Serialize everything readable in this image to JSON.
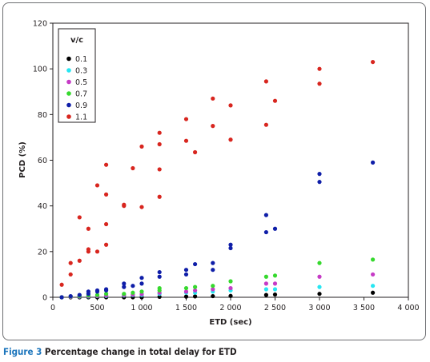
{
  "chart_data": {
    "type": "scatter",
    "title": "",
    "xlabel": "ETD (sec)",
    "ylabel": "PCD (%)",
    "xlim": [
      0,
      4000
    ],
    "ylim": [
      0,
      120
    ],
    "x_ticks": [
      0,
      500,
      1000,
      1500,
      2000,
      2500,
      3000,
      3500,
      4000
    ],
    "x_tick_labels": [
      "0",
      "500",
      "1 000",
      "1 500",
      "2 000",
      "2 500",
      "3 000",
      "3 500",
      "4 000"
    ],
    "y_ticks": [
      0,
      20,
      40,
      60,
      80,
      100,
      120
    ],
    "y_tick_labels": [
      "0",
      "20",
      "40",
      "60",
      "80",
      "100",
      "120"
    ],
    "grid": false,
    "legend": {
      "title": "v/c",
      "position": "top-left"
    },
    "series": [
      {
        "name": "0.1",
        "color": "#000000",
        "points": [
          [
            100,
            0
          ],
          [
            200,
            0
          ],
          [
            300,
            0
          ],
          [
            400,
            0
          ],
          [
            500,
            0
          ],
          [
            600,
            0
          ],
          [
            800,
            0
          ],
          [
            900,
            0
          ],
          [
            1000,
            0
          ],
          [
            1200,
            0.2
          ],
          [
            1500,
            0.3
          ],
          [
            1600,
            0.4
          ],
          [
            1800,
            0.5
          ],
          [
            2000,
            0.6
          ],
          [
            2400,
            1
          ],
          [
            2500,
            1.2
          ],
          [
            3000,
            1.5
          ],
          [
            3600,
            2
          ]
        ]
      },
      {
        "name": "0.3",
        "color": "#27e6f2",
        "points": [
          [
            100,
            0
          ],
          [
            200,
            0.2
          ],
          [
            300,
            0.3
          ],
          [
            400,
            0.4
          ],
          [
            500,
            0.5
          ],
          [
            600,
            0.6
          ],
          [
            800,
            0.8
          ],
          [
            900,
            1
          ],
          [
            1000,
            1
          ],
          [
            1200,
            1.5
          ],
          [
            1500,
            2
          ],
          [
            1600,
            2
          ],
          [
            1800,
            2.5
          ],
          [
            2000,
            3
          ],
          [
            2400,
            3.5
          ],
          [
            2500,
            3.5
          ],
          [
            3000,
            4.5
          ],
          [
            3600,
            5
          ]
        ]
      },
      {
        "name": "0.5",
        "color": "#c63bc6",
        "points": [
          [
            100,
            0
          ],
          [
            200,
            0.2
          ],
          [
            300,
            0.4
          ],
          [
            400,
            0.5
          ],
          [
            500,
            0.6
          ],
          [
            600,
            0.8
          ],
          [
            800,
            1
          ],
          [
            900,
            1.2
          ],
          [
            1000,
            1.4
          ],
          [
            1200,
            2
          ],
          [
            1500,
            2.5
          ],
          [
            1600,
            3
          ],
          [
            1800,
            3.5
          ],
          [
            2000,
            4
          ],
          [
            2400,
            6
          ],
          [
            2500,
            6
          ],
          [
            3000,
            9
          ],
          [
            3600,
            10
          ]
        ]
      },
      {
        "name": "0.7",
        "color": "#36d92e",
        "points": [
          [
            100,
            0
          ],
          [
            200,
            0.4
          ],
          [
            300,
            0.6
          ],
          [
            400,
            0.8
          ],
          [
            500,
            1
          ],
          [
            600,
            1.5
          ],
          [
            800,
            1.5
          ],
          [
            900,
            2
          ],
          [
            1000,
            2.5
          ],
          [
            1200,
            3
          ],
          [
            1200,
            4
          ],
          [
            1500,
            4
          ],
          [
            1600,
            4.5
          ],
          [
            1800,
            5
          ],
          [
            2000,
            7
          ],
          [
            2400,
            9
          ],
          [
            2500,
            9.5
          ],
          [
            3000,
            15
          ],
          [
            3600,
            16.5
          ]
        ]
      },
      {
        "name": "0.9",
        "color": "#0f1ea8",
        "points": [
          [
            100,
            0
          ],
          [
            200,
            0.5
          ],
          [
            300,
            1
          ],
          [
            400,
            1.5
          ],
          [
            400,
            2.5
          ],
          [
            500,
            2.5
          ],
          [
            500,
            3
          ],
          [
            600,
            3
          ],
          [
            600,
            3.5
          ],
          [
            800,
            4.5
          ],
          [
            800,
            6
          ],
          [
            900,
            5
          ],
          [
            1000,
            6
          ],
          [
            1000,
            8.5
          ],
          [
            1200,
            9
          ],
          [
            1200,
            11
          ],
          [
            1500,
            10
          ],
          [
            1500,
            12
          ],
          [
            1600,
            14.5
          ],
          [
            1800,
            12
          ],
          [
            1800,
            15
          ],
          [
            2000,
            21.5
          ],
          [
            2000,
            23
          ],
          [
            2400,
            28.5
          ],
          [
            2400,
            36
          ],
          [
            2500,
            30
          ],
          [
            3000,
            50.5
          ],
          [
            3000,
            54
          ],
          [
            3600,
            59
          ]
        ]
      },
      {
        "name": "1.1",
        "color": "#d8261f",
        "points": [
          [
            100,
            5.5
          ],
          [
            200,
            10
          ],
          [
            200,
            15
          ],
          [
            300,
            16
          ],
          [
            300,
            35
          ],
          [
            400,
            20
          ],
          [
            400,
            21
          ],
          [
            400,
            30
          ],
          [
            500,
            20
          ],
          [
            500,
            49
          ],
          [
            600,
            23
          ],
          [
            600,
            32
          ],
          [
            600,
            45
          ],
          [
            600,
            58
          ],
          [
            800,
            40
          ],
          [
            800,
            40.5
          ],
          [
            900,
            56.5
          ],
          [
            1000,
            39.5
          ],
          [
            1000,
            66
          ],
          [
            1200,
            44
          ],
          [
            1200,
            56
          ],
          [
            1200,
            67
          ],
          [
            1200,
            72
          ],
          [
            1500,
            68.5
          ],
          [
            1500,
            78
          ],
          [
            1600,
            63.5
          ],
          [
            1800,
            75
          ],
          [
            1800,
            87
          ],
          [
            2000,
            69
          ],
          [
            2000,
            84
          ],
          [
            2400,
            75.5
          ],
          [
            2400,
            94.5
          ],
          [
            2500,
            86
          ],
          [
            3000,
            93.5
          ],
          [
            3000,
            100
          ],
          [
            3600,
            103
          ]
        ]
      }
    ]
  },
  "caption": {
    "figure_number": "Figure 3",
    "text": "Percentage change in total delay for ETD"
  }
}
